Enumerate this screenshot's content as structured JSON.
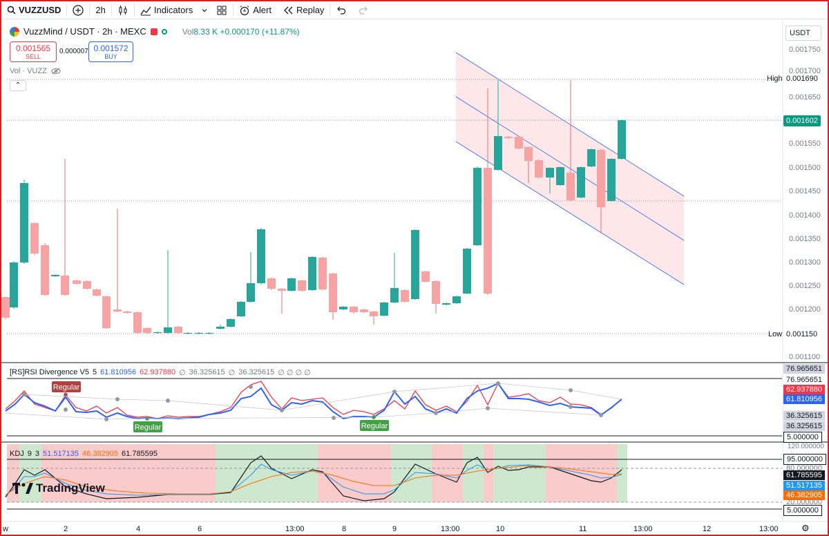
{
  "toolbar": {
    "symbol": "VUZZUSD",
    "interval": "2h",
    "indicators": "Indicators",
    "alert": "Alert",
    "replay": "Replay"
  },
  "legend": {
    "title": "VuzzMind / USDT · 2h · MEXC",
    "vol_label": "Vol",
    "vol_value": "8.33 K",
    "change": "+0.000170 (+11.87%)",
    "sell_price": "0.001565",
    "sell_label": "SELL",
    "spread": "0.000007",
    "buy_price": "0.001572",
    "buy_label": "BUY",
    "vol_indicator": "Vol · VUZZ"
  },
  "currency": "USDT",
  "price_axis": {
    "ticks": [
      "0.001750",
      "0.001700",
      "0.001650",
      "0.001550",
      "0.001500",
      "0.001450",
      "0.001400",
      "0.001350",
      "0.001300",
      "0.001250",
      "0.001200",
      "0.001100"
    ],
    "high_label": "High",
    "high_value": "0.001690",
    "low_label": "Low",
    "low_value": "0.001150",
    "current": "0.001602"
  },
  "rsi": {
    "legend_name": "[RS]RSI Divergence V5",
    "length": "5",
    "v1": "61.810956",
    "v2": "62.937880",
    "v3": "∅",
    "v4": "36.325615",
    "v5": "∅",
    "v6": "36.325615",
    "v7": "∅ ∅ ∅ ∅",
    "scale": [
      "76.965651",
      "76.965651",
      "62.937880",
      "61.810956",
      "36.325615",
      "36.325615",
      "5.000000"
    ],
    "regular": "Regular"
  },
  "kdj": {
    "legend_name": "KDJ",
    "p1": "9",
    "p2": "3",
    "k": "51.517135",
    "d": "46.382905",
    "j": "61.785595",
    "scale_top": "120.000000",
    "scale": [
      "95.000000",
      "80.000000",
      "61.785595",
      "51.517135",
      "46.382905",
      "20.000000",
      "5.000000"
    ]
  },
  "time_axis": [
    "w",
    "2",
    "4",
    "6",
    "13:00",
    "8",
    "9",
    "13:00",
    "10",
    "11",
    "13:00",
    "12",
    "13:00"
  ],
  "brand": "TradingView",
  "colors": {
    "up": "#26a69a",
    "down": "#f7a3a3",
    "rsi_blue": "#2962ff",
    "rsi_red": "#f23645",
    "k": "#2196f3",
    "d": "#ff6d00",
    "j": "#131722"
  }
}
